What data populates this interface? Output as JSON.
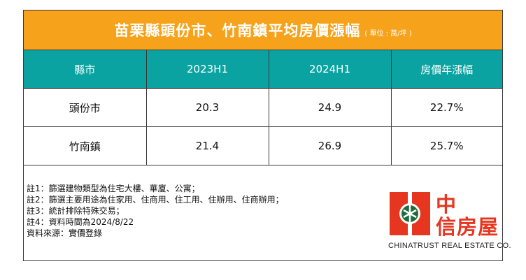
{
  "title": {
    "main": "苗栗縣頭份市、竹南鎮平均房價漲幅",
    "unit": "( 單位 : 萬/坪 )"
  },
  "table": {
    "headers": [
      "縣市",
      "2023H1",
      "2024H1",
      "房價年漲幅"
    ],
    "rows": [
      [
        "頭份市",
        "20.3",
        "24.9",
        "22.7%"
      ],
      [
        "竹南鎮",
        "21.4",
        "26.9",
        "25.7%"
      ]
    ]
  },
  "notes": [
    "註1：篩選建物類型為住宅大樓、華廈、公寓；",
    "註2：篩選主要用途為住家用、住商用、住工用、住辦用、住商辦用；",
    "註3：統計排除特殊交易；",
    "註4：資料時間為2024/8/22",
    "資料來源：實價登錄"
  ],
  "logo": {
    "line1": "中",
    "line2": "信房屋",
    "subtitle": "CHINATRUST REAL ESTATE CO.",
    "color": "#e6361f"
  },
  "colors": {
    "title_bg": "#f7a21b",
    "header_bg": "#0aa3a1"
  }
}
